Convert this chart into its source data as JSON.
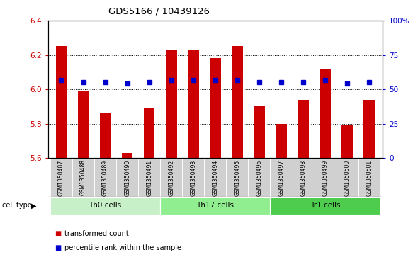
{
  "title": "GDS5166 / 10439126",
  "samples": [
    "GSM1350487",
    "GSM1350488",
    "GSM1350489",
    "GSM1350490",
    "GSM1350491",
    "GSM1350492",
    "GSM1350493",
    "GSM1350494",
    "GSM1350495",
    "GSM1350496",
    "GSM1350497",
    "GSM1350498",
    "GSM1350499",
    "GSM1350500",
    "GSM1350501"
  ],
  "red_values": [
    6.25,
    5.99,
    5.86,
    5.63,
    5.89,
    6.23,
    6.23,
    6.18,
    6.25,
    5.9,
    5.8,
    5.94,
    6.12,
    5.79,
    5.94
  ],
  "blue_percentile": [
    57,
    55,
    55,
    54,
    55,
    57,
    57,
    57,
    57,
    55,
    55,
    55,
    57,
    54,
    55
  ],
  "ylim_left": [
    5.6,
    6.4
  ],
  "ylim_right": [
    0,
    100
  ],
  "yticks_left": [
    5.6,
    5.8,
    6.0,
    6.2,
    6.4
  ],
  "yticks_right": [
    0,
    25,
    50,
    75,
    100
  ],
  "ytick_labels_right": [
    "0",
    "25",
    "50",
    "75",
    "100%"
  ],
  "cell_groups": [
    {
      "label": "Th0 cells",
      "start": 0,
      "end": 4,
      "color": "#c8f0c8"
    },
    {
      "label": "Th17 cells",
      "start": 5,
      "end": 9,
      "color": "#90ee90"
    },
    {
      "label": "Tr1 cells",
      "start": 10,
      "end": 14,
      "color": "#4dcc4d"
    }
  ],
  "bar_color": "#cc0000",
  "dot_color": "#0000cc",
  "bar_width": 0.5,
  "bg_color": "#ffffff",
  "left_color": "#cc0000",
  "right_color": "#0000cc",
  "legend_items": [
    {
      "label": "transformed count",
      "color": "#cc0000"
    },
    {
      "label": "percentile rank within the sample",
      "color": "#0000cc"
    }
  ]
}
